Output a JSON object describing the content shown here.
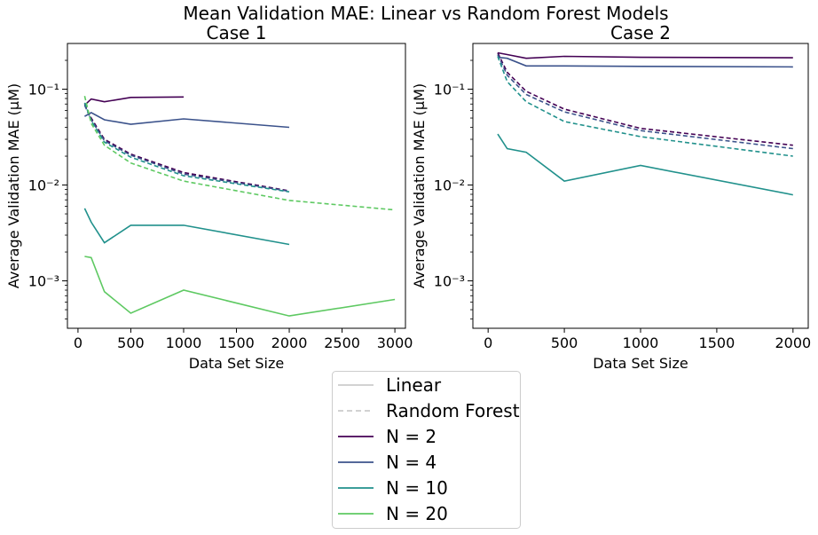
{
  "suptitle": "Mean Validation MAE: Linear vs Random Forest Models",
  "chart_data": [
    {
      "type": "line",
      "title": "Case 1",
      "xlabel": "Data Set Size",
      "ylabel": "Average Validation MAE (μM)",
      "yscale": "log",
      "xlim": [
        -100,
        3100
      ],
      "ylim": [
        0.00032,
        0.3
      ],
      "xticks": [
        "0",
        "500",
        "1000",
        "1500",
        "2000",
        "2500",
        "3000"
      ],
      "yticks": [
        "10⁻³",
        "10⁻²",
        "10⁻¹"
      ],
      "series": [
        {
          "name": "N = 2",
          "model": "Linear",
          "color": "#440154",
          "dashed": false,
          "x": [
            63,
            125,
            250,
            500,
            1000
          ],
          "y": [
            0.068,
            0.079,
            0.074,
            0.082,
            0.083
          ]
        },
        {
          "name": "N = 2",
          "model": "Random Forest",
          "color": "#440154",
          "dashed": true,
          "x": [
            63,
            125,
            250,
            500,
            1000,
            2000
          ],
          "y": [
            0.07,
            0.05,
            0.03,
            0.021,
            0.0135,
            0.0087
          ]
        },
        {
          "name": "N = 4",
          "model": "Linear",
          "color": "#3b528b",
          "dashed": false,
          "x": [
            63,
            125,
            250,
            500,
            1000,
            2000
          ],
          "y": [
            0.052,
            0.057,
            0.048,
            0.043,
            0.049,
            0.04
          ]
        },
        {
          "name": "N = 4",
          "model": "Random Forest",
          "color": "#3b528b",
          "dashed": true,
          "x": [
            63,
            125,
            250,
            500,
            1000,
            2000
          ],
          "y": [
            0.068,
            0.048,
            0.029,
            0.0205,
            0.013,
            0.0086
          ]
        },
        {
          "name": "N = 10",
          "model": "Linear",
          "color": "#21918c",
          "dashed": false,
          "x": [
            63,
            125,
            250,
            500,
            1000,
            2000
          ],
          "y": [
            0.0057,
            0.0041,
            0.0025,
            0.0038,
            0.0038,
            0.0024
          ]
        },
        {
          "name": "N = 10",
          "model": "Random Forest",
          "color": "#21918c",
          "dashed": true,
          "x": [
            63,
            125,
            250,
            500,
            1000,
            2000
          ],
          "y": [
            0.072,
            0.047,
            0.028,
            0.0195,
            0.0125,
            0.0085
          ]
        },
        {
          "name": "N = 20",
          "model": "Linear",
          "color": "#5ec962",
          "dashed": false,
          "x": [
            63,
            125,
            250,
            500,
            1000,
            2000,
            3000
          ],
          "y": [
            0.0018,
            0.00175,
            0.00077,
            0.00046,
            0.0008,
            0.00043,
            0.00064
          ]
        },
        {
          "name": "N = 20",
          "model": "Random Forest",
          "color": "#5ec962",
          "dashed": true,
          "x": [
            63,
            125,
            250,
            500,
            1000,
            2000,
            3000
          ],
          "y": [
            0.085,
            0.044,
            0.026,
            0.017,
            0.011,
            0.0069,
            0.0055
          ]
        }
      ]
    },
    {
      "type": "line",
      "title": "Case 2",
      "xlabel": "Data Set Size",
      "ylabel": "Average Validation MAE (μM)",
      "yscale": "log",
      "xlim": [
        -100,
        2100
      ],
      "ylim": [
        0.00032,
        0.3
      ],
      "xticks": [
        "0",
        "500",
        "1000",
        "1500",
        "2000"
      ],
      "yticks": [
        "10⁻³",
        "10⁻²",
        "10⁻¹"
      ],
      "series": [
        {
          "name": "N = 2",
          "model": "Linear",
          "color": "#440154",
          "dashed": false,
          "x": [
            63,
            125,
            250,
            500,
            1000,
            2000
          ],
          "y": [
            0.24,
            0.23,
            0.21,
            0.22,
            0.215,
            0.213
          ]
        },
        {
          "name": "N = 2",
          "model": "Random Forest",
          "color": "#440154",
          "dashed": true,
          "x": [
            63,
            125,
            250,
            500,
            1000,
            2000
          ],
          "y": [
            0.24,
            0.15,
            0.095,
            0.062,
            0.039,
            0.026
          ]
        },
        {
          "name": "N = 4",
          "model": "Linear",
          "color": "#3b528b",
          "dashed": false,
          "x": [
            63,
            125,
            250,
            500,
            1000,
            2000
          ],
          "y": [
            0.215,
            0.21,
            0.175,
            0.175,
            0.173,
            0.171
          ]
        },
        {
          "name": "N = 4",
          "model": "Random Forest",
          "color": "#3b528b",
          "dashed": true,
          "x": [
            63,
            125,
            250,
            500,
            1000,
            2000
          ],
          "y": [
            0.23,
            0.14,
            0.088,
            0.058,
            0.037,
            0.024
          ]
        },
        {
          "name": "N = 10",
          "model": "Linear",
          "color": "#21918c",
          "dashed": false,
          "x": [
            63,
            125,
            250,
            500,
            1000,
            2000
          ],
          "y": [
            0.034,
            0.024,
            0.022,
            0.011,
            0.016,
            0.0079
          ]
        },
        {
          "name": "N = 10",
          "model": "Random Forest",
          "color": "#21918c",
          "dashed": true,
          "x": [
            63,
            125,
            250,
            500,
            1000,
            2000
          ],
          "y": [
            0.22,
            0.12,
            0.074,
            0.046,
            0.032,
            0.02
          ]
        }
      ]
    }
  ],
  "legend": {
    "items": [
      {
        "label": "Linear",
        "color": "#cccccc",
        "dashed": false
      },
      {
        "label": "Random Forest",
        "color": "#cccccc",
        "dashed": true
      },
      {
        "label": "N = 2",
        "color": "#440154",
        "dashed": false
      },
      {
        "label": "N = 4",
        "color": "#3b528b",
        "dashed": false
      },
      {
        "label": "N = 10",
        "color": "#21918c",
        "dashed": false
      },
      {
        "label": "N = 20",
        "color": "#5ec962",
        "dashed": false
      }
    ]
  }
}
